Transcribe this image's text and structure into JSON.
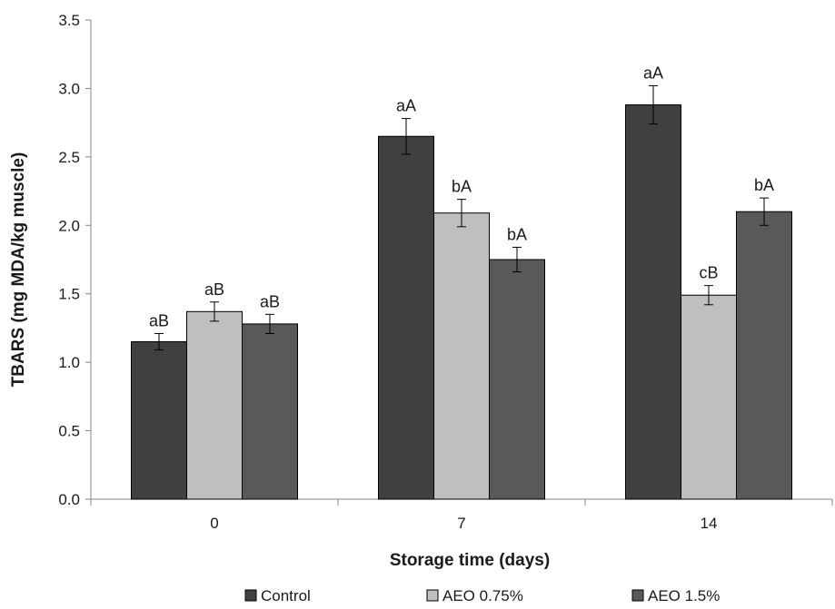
{
  "chart_data": {
    "type": "bar",
    "categories": [
      "0",
      "7",
      "14"
    ],
    "xlabel": "Storage time (days)",
    "ylabel": "TBARS (mg MDA/kg muscle)",
    "ylim": [
      0,
      3.5
    ],
    "yticks": [
      "0.0",
      "0.5",
      "1.0",
      "1.5",
      "2.0",
      "2.5",
      "3.0",
      "3.5"
    ],
    "grid": false,
    "legend_position": "bottom",
    "series": [
      {
        "name": "Control",
        "color": "#404040",
        "values": [
          1.15,
          2.65,
          2.88
        ],
        "errors": [
          0.06,
          0.13,
          0.14
        ],
        "labels": [
          "aB",
          "aA",
          "aA"
        ]
      },
      {
        "name": "AEO 0.75%",
        "color": "#bfbfbf",
        "values": [
          1.37,
          2.09,
          1.49
        ],
        "errors": [
          0.07,
          0.1,
          0.07
        ],
        "labels": [
          "aB",
          "bA",
          "cB"
        ]
      },
      {
        "name": "AEO 1.5%",
        "color": "#595959",
        "values": [
          1.28,
          1.75,
          2.1
        ],
        "errors": [
          0.07,
          0.09,
          0.1
        ],
        "labels": [
          "aB",
          "bA",
          "bA"
        ]
      }
    ]
  }
}
